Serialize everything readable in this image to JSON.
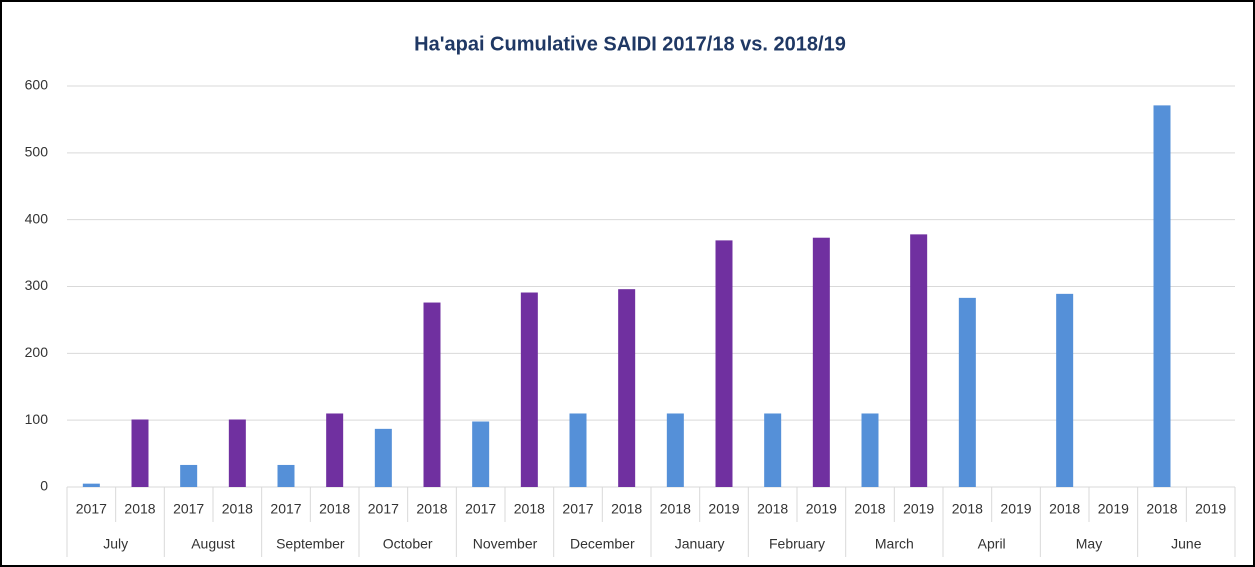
{
  "chart_data": {
    "type": "bar",
    "title": "Ha'apai Cumulative SAIDI 2017/18 vs. 2018/19",
    "categories": [
      "July",
      "August",
      "September",
      "October",
      "November",
      "December",
      "January",
      "February",
      "March",
      "April",
      "May",
      "June"
    ],
    "subcategories": [
      [
        "2017",
        "2018"
      ],
      [
        "2017",
        "2018"
      ],
      [
        "2017",
        "2018"
      ],
      [
        "2017",
        "2018"
      ],
      [
        "2017",
        "2018"
      ],
      [
        "2017",
        "2018"
      ],
      [
        "2018",
        "2019"
      ],
      [
        "2018",
        "2019"
      ],
      [
        "2018",
        "2019"
      ],
      [
        "2018",
        "2019"
      ],
      [
        "2018",
        "2019"
      ],
      [
        "2018",
        "2019"
      ]
    ],
    "series": [
      {
        "color": "#5590d8",
        "values": [
          5,
          33,
          33,
          87,
          98,
          110,
          110,
          110,
          110,
          283,
          289,
          571
        ]
      },
      {
        "color": "#7030a0",
        "values": [
          101,
          101,
          110,
          276,
          291,
          296,
          369,
          373,
          378,
          null,
          null,
          null
        ]
      }
    ],
    "ylim": [
      0,
      600
    ],
    "yticks": [
      0,
      100,
      200,
      300,
      400,
      500,
      600
    ],
    "grid": true
  }
}
